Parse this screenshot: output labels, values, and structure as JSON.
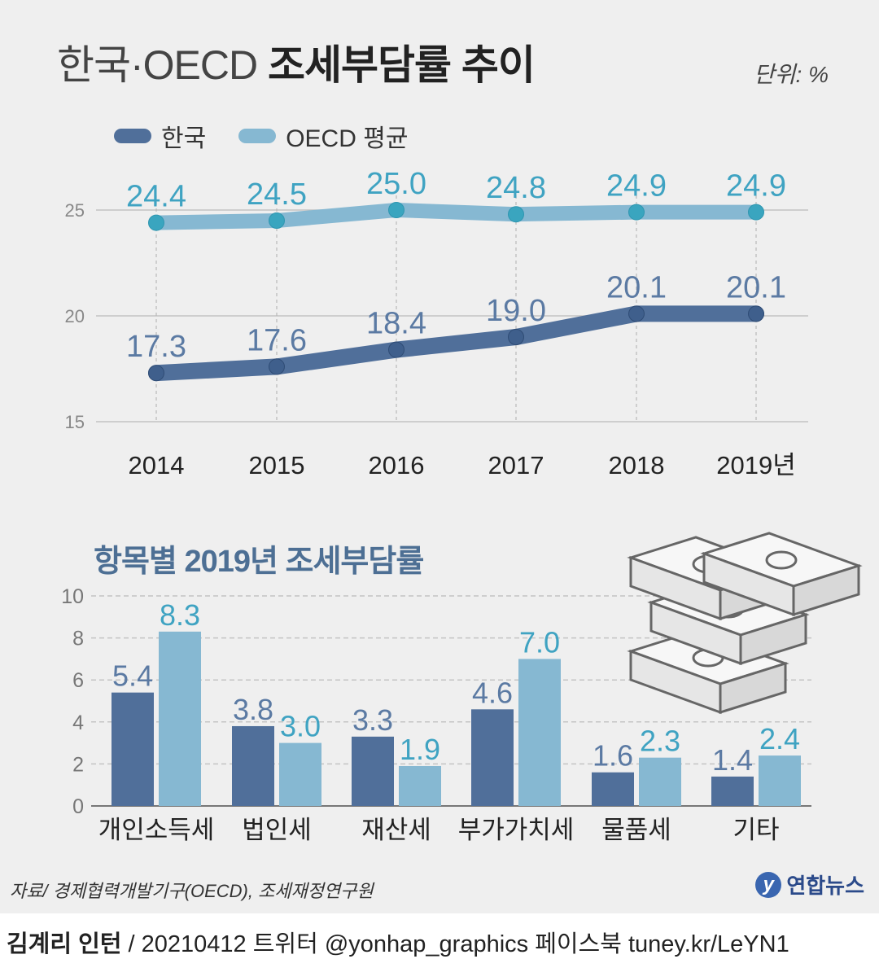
{
  "title": {
    "part1": "한국·OECD",
    "part2": "조세부담률 추이"
  },
  "unit": "단위: %",
  "legend": [
    {
      "label": "한국",
      "color": "#506f9a"
    },
    {
      "label": "OECD 평균",
      "color": "#86b8d2"
    }
  ],
  "subtitle": "항목별 2019년 조세부담률",
  "source": "자료/ 경제협력개발기구(OECD), 조세재정연구원",
  "logo": {
    "mark": "y",
    "text": "연합뉴스"
  },
  "footer": {
    "author": "김계리 인턴",
    "rest": " / 20210412   트위터 @yonhap_graphics  페이스북 tuney.kr/LeYN1"
  },
  "chart_data": [
    {
      "type": "line",
      "x": [
        "2014",
        "2015",
        "2016",
        "2017",
        "2018",
        "2019년"
      ],
      "ylim": [
        15,
        25
      ],
      "yticks": [
        15,
        20,
        25
      ],
      "grid": true,
      "legend_position": "top-left",
      "series": [
        {
          "name": "한국",
          "values": [
            17.3,
            17.6,
            18.4,
            19.0,
            20.1,
            20.1
          ],
          "labels": [
            "17.3",
            "17.6",
            "18.4",
            "19.0",
            "20.1",
            "20.1"
          ],
          "color": "#506f9a",
          "marker_color": "#3f5f8c",
          "label_color": "#5b7aa3"
        },
        {
          "name": "OECD 평균",
          "values": [
            24.4,
            24.5,
            25.0,
            24.8,
            24.9,
            24.9
          ],
          "labels": [
            "24.4",
            "24.5",
            "25.0",
            "24.8",
            "24.9",
            "24.9"
          ],
          "color": "#86b8d2",
          "marker_color": "#3aa5bf",
          "label_color": "#3fa3c2"
        }
      ]
    },
    {
      "type": "bar",
      "categories": [
        "개인소득세",
        "법인세",
        "재산세",
        "부가가치세",
        "물품세",
        "기타"
      ],
      "ylim": [
        0,
        10
      ],
      "yticks": [
        0,
        2,
        4,
        6,
        8,
        10
      ],
      "grid": true,
      "series": [
        {
          "name": "한국",
          "values": [
            5.4,
            3.8,
            3.3,
            4.6,
            1.6,
            1.4
          ],
          "labels": [
            "5.4",
            "3.8",
            "3.3",
            "4.6",
            "1.6",
            "1.4"
          ],
          "color": "#506f9a",
          "label_color": "#5b7aa3"
        },
        {
          "name": "OECD 평균",
          "values": [
            8.3,
            3.0,
            1.9,
            7.0,
            2.3,
            2.4
          ],
          "labels": [
            "8.3",
            "3.0",
            "1.9",
            "7.0",
            "2.3",
            "2.4"
          ],
          "color": "#86b8d2",
          "label_color": "#3fa3c2"
        }
      ]
    }
  ]
}
